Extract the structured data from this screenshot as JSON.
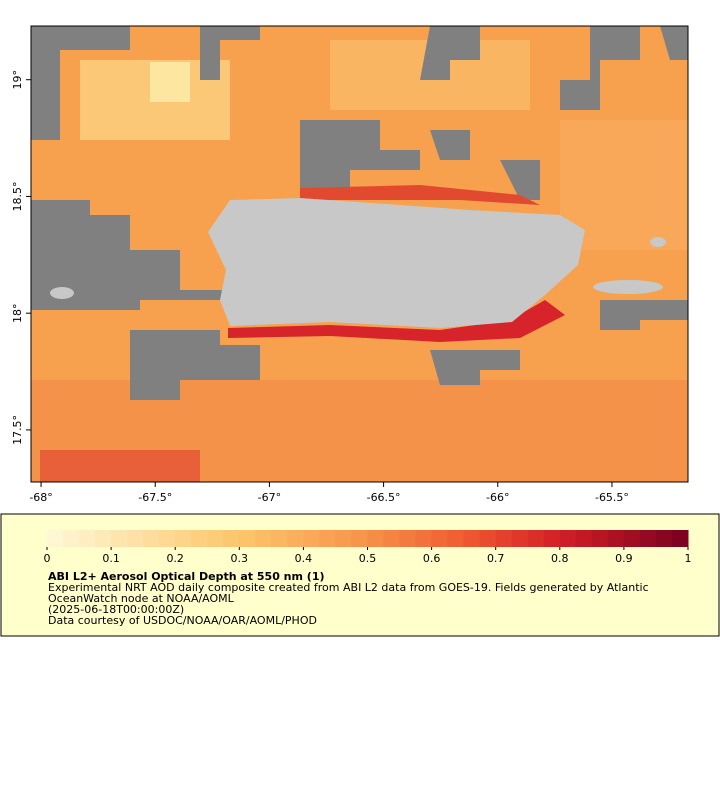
{
  "map": {
    "xlim": [
      -68.044,
      -65.167
    ],
    "ylim": [
      17.277,
      19.23
    ],
    "xticks": [
      {
        "value": -68,
        "label": "-68°"
      },
      {
        "value": -67.5,
        "label": "-67.5°"
      },
      {
        "value": -67,
        "label": "-67°"
      },
      {
        "value": -66.5,
        "label": "-66.5°"
      },
      {
        "value": -66,
        "label": "-66°"
      },
      {
        "value": -65.5,
        "label": "-65.5°"
      }
    ],
    "yticks": [
      {
        "value": 17.5,
        "label": "17.5°"
      },
      {
        "value": 18,
        "label": "18°"
      },
      {
        "value": 18.5,
        "label": "18.5°"
      },
      {
        "value": 19,
        "label": "19°"
      }
    ]
  },
  "legend": {
    "range": [
      0,
      1
    ],
    "ticks": [
      0,
      0.1,
      0.2,
      0.3,
      0.4,
      0.5,
      0.6,
      0.7,
      0.8,
      0.9,
      1
    ],
    "steps": 40,
    "colors": [
      {
        "value": 0,
        "color": "#fff8d8"
      },
      {
        "value": 0.3,
        "color": "#fcc66a"
      },
      {
        "value": 0.5,
        "color": "#f79249"
      },
      {
        "value": 0.65,
        "color": "#f05a32"
      },
      {
        "value": 0.8,
        "color": "#d31f26"
      },
      {
        "value": 1,
        "color": "#780020"
      }
    ],
    "title": "ABI L2+ Aerosol Optical Depth at 550 nm (1)",
    "lines": [
      "Experimental NRT AOD daily composite created from ABI L2 data from GOES-19. Fields generated by Atlantic",
      "OceanWatch node at NOAA/AOML",
      "(2025-06-18T00:00:00Z)",
      "Data courtesy of USDOC/NOAA/OAR/AOML/PHOD"
    ]
  }
}
